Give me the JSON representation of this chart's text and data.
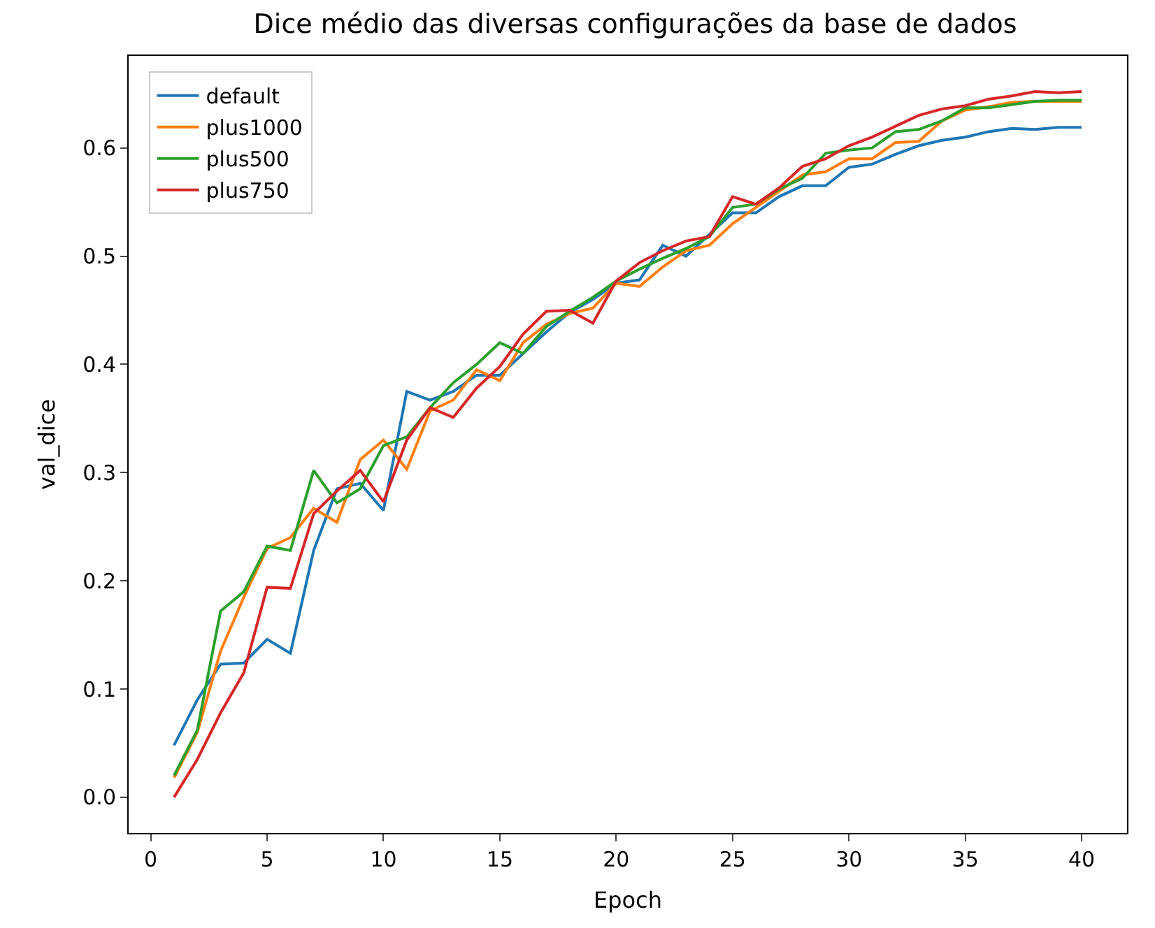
{
  "chart_data": {
    "type": "line",
    "title": "Dice médio das diversas configurações da base de dados",
    "xlabel": "Epoch",
    "ylabel": "val_dice",
    "x": [
      1,
      2,
      3,
      4,
      5,
      6,
      7,
      8,
      9,
      10,
      11,
      12,
      13,
      14,
      15,
      16,
      17,
      18,
      19,
      20,
      21,
      22,
      23,
      24,
      25,
      26,
      27,
      28,
      29,
      30,
      31,
      32,
      33,
      34,
      35,
      36,
      37,
      38,
      39,
      40
    ],
    "series": [
      {
        "name": "default",
        "color": "#1f77b4",
        "values": [
          0.048,
          0.09,
          0.123,
          0.124,
          0.146,
          0.133,
          0.228,
          0.285,
          0.29,
          0.265,
          0.375,
          0.367,
          0.375,
          0.39,
          0.39,
          0.41,
          0.43,
          0.448,
          0.46,
          0.475,
          0.478,
          0.51,
          0.5,
          0.52,
          0.54,
          0.54,
          0.555,
          0.565,
          0.565,
          0.582,
          0.585,
          0.594,
          0.602,
          0.607,
          0.61,
          0.615,
          0.618,
          0.617,
          0.619,
          0.619
        ]
      },
      {
        "name": "plus1000",
        "color": "#ff7f0e",
        "values": [
          0.018,
          0.06,
          0.135,
          0.185,
          0.23,
          0.24,
          0.267,
          0.254,
          0.312,
          0.33,
          0.303,
          0.357,
          0.367,
          0.395,
          0.385,
          0.42,
          0.437,
          0.447,
          0.452,
          0.475,
          0.472,
          0.49,
          0.505,
          0.51,
          0.53,
          0.545,
          0.56,
          0.575,
          0.578,
          0.59,
          0.59,
          0.605,
          0.606,
          0.625,
          0.635,
          0.638,
          0.642,
          0.643,
          0.643,
          0.643
        ]
      },
      {
        "name": "plus500",
        "color": "#2ca02c",
        "values": [
          0.02,
          0.062,
          0.172,
          0.19,
          0.232,
          0.228,
          0.302,
          0.272,
          0.285,
          0.325,
          0.333,
          0.36,
          0.383,
          0.4,
          0.42,
          0.41,
          0.435,
          0.449,
          0.462,
          0.477,
          0.488,
          0.498,
          0.507,
          0.518,
          0.545,
          0.548,
          0.562,
          0.572,
          0.595,
          0.598,
          0.6,
          0.615,
          0.617,
          0.625,
          0.637,
          0.637,
          0.64,
          0.643,
          0.644,
          0.644
        ]
      },
      {
        "name": "plus750",
        "color": "#d62728",
        "values": [
          0.0,
          0.035,
          0.078,
          0.115,
          0.194,
          0.193,
          0.262,
          0.283,
          0.302,
          0.273,
          0.33,
          0.36,
          0.351,
          0.378,
          0.398,
          0.428,
          0.449,
          0.45,
          0.438,
          0.477,
          0.494,
          0.505,
          0.514,
          0.518,
          0.555,
          0.548,
          0.563,
          0.583,
          0.59,
          0.602,
          0.61,
          0.62,
          0.63,
          0.636,
          0.639,
          0.645,
          0.648,
          0.652,
          0.651,
          0.652
        ]
      }
    ],
    "xlim": [
      -0.95,
      41.95
    ],
    "xticks": [
      0,
      5,
      10,
      15,
      20,
      25,
      30,
      35,
      40
    ],
    "ylim": [
      -0.033,
      0.685
    ],
    "yticks": [
      {
        "value": 0,
        "label": "0.0"
      },
      {
        "value": 0.1,
        "label": "0.1"
      },
      {
        "value": 0.2,
        "label": "0.2"
      },
      {
        "value": 0.3,
        "label": "0.3"
      },
      {
        "value": 0.4,
        "label": "0.4"
      },
      {
        "value": 0.5,
        "label": "0.5"
      },
      {
        "value": 0.6,
        "label": "0.6"
      }
    ],
    "legend": "top left",
    "marker": "none",
    "line_style": "solid"
  }
}
